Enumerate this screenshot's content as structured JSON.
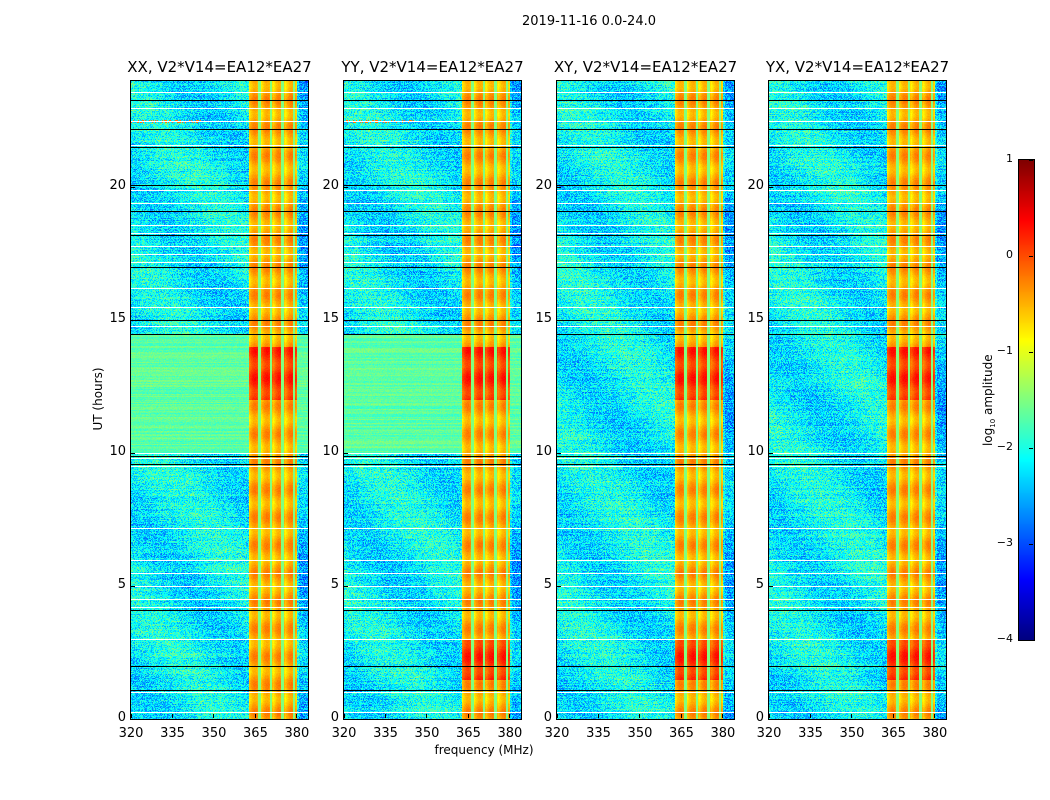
{
  "chart_data": {
    "type": "heatmap",
    "suptitle": "2019-11-16 0.0-24.0",
    "xlabel": "frequency (MHz)",
    "ylabel": "UT (hours)",
    "xlim": [
      320,
      384
    ],
    "ylim": [
      0,
      24
    ],
    "xticks": [
      "320",
      "335",
      "350",
      "365",
      "380"
    ],
    "xtick_values": [
      320,
      335,
      350,
      365,
      380
    ],
    "yticks": [
      "0",
      "5",
      "10",
      "15",
      "20"
    ],
    "ytick_values": [
      0,
      5,
      10,
      15,
      20
    ],
    "panels": [
      {
        "title": "XX, V2*V14=EA12*EA27",
        "hot_hours": [
          [
            12,
            14
          ]
        ],
        "green_hours": [
          10,
          14.5
        ]
      },
      {
        "title": "YY, V2*V14=EA12*EA27",
        "hot_hours": [
          [
            12,
            14
          ],
          [
            1.5,
            3
          ]
        ],
        "green_hours": [
          10,
          14.5
        ]
      },
      {
        "title": "XY, V2*V14=EA12*EA27",
        "hot_hours": [
          [
            12,
            14
          ],
          [
            1.5,
            3
          ]
        ],
        "green_hours": []
      },
      {
        "title": "YX, V2*V14=EA12*EA27",
        "hot_hours": [
          [
            12,
            14
          ],
          [
            1.5,
            3
          ]
        ],
        "green_hours": []
      }
    ],
    "band_mhz": [
      362.5,
      380
    ],
    "background_log_amplitude": -2.6,
    "band_log_amplitude": -0.6,
    "flagged_hours": [
      0.25,
      1.0,
      3.0,
      4.2,
      4.5,
      5.0,
      5.5,
      6.0,
      7.2,
      9.5,
      9.8,
      10.0,
      14.8,
      15.5,
      16.2,
      17.2,
      17.5,
      17.8,
      18.3,
      18.6,
      19.4,
      19.9,
      21.6,
      22.5,
      23.0,
      23.6
    ],
    "dark_hours": [
      1.1,
      2.0,
      4.1,
      9.6,
      9.9,
      14.5,
      15.0,
      17.0,
      18.2,
      19.1,
      20.1,
      21.5,
      22.2,
      23.3
    ],
    "colorbar": {
      "label_prefix": "log",
      "label_sub": "10",
      "label_suffix": " amplitude",
      "range": [
        -4,
        1
      ],
      "ticks": [
        "1",
        "0",
        "−1",
        "−2",
        "−3",
        "−4"
      ],
      "tick_values": [
        1,
        0,
        -1,
        -2,
        -3,
        -4
      ],
      "colormap": "jet"
    }
  }
}
